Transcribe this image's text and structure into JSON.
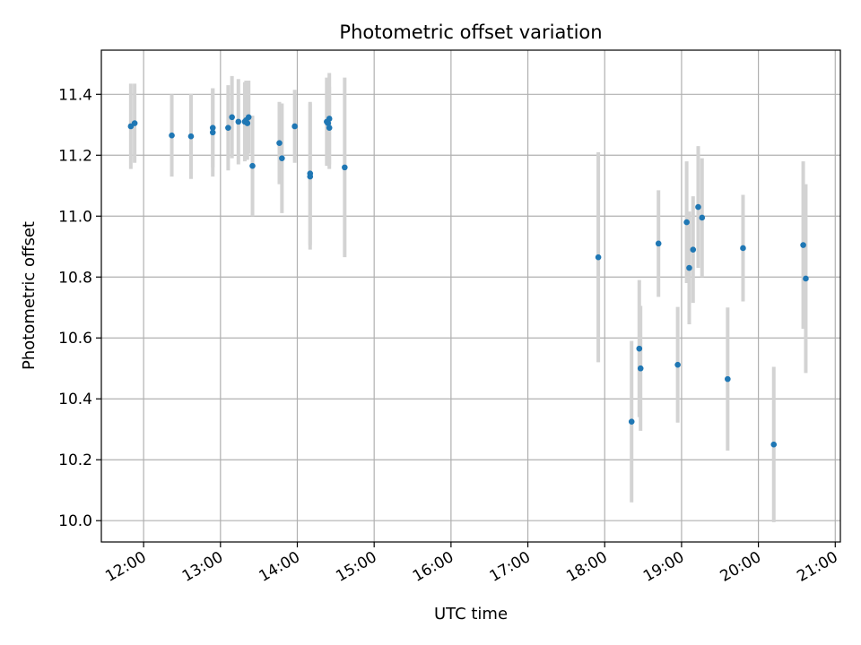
{
  "chart_data": {
    "type": "scatter",
    "title": "Photometric offset variation",
    "xlabel": "UTC time",
    "ylabel": "Photometric offset",
    "x_unit": "UTC hours",
    "xlim": [
      "11:27",
      "21:04"
    ],
    "ylim": [
      9.93,
      11.545
    ],
    "grid": true,
    "x_ticks": [
      "12:00",
      "13:00",
      "14:00",
      "15:00",
      "16:00",
      "17:00",
      "18:00",
      "19:00",
      "20:00",
      "21:00"
    ],
    "y_ticks": [
      "10.0",
      "10.2",
      "10.4",
      "10.6",
      "10.8",
      "11.0",
      "11.2",
      "11.4"
    ],
    "colors": {
      "points": "#1f77b4",
      "error_bars": "#d3d3d3",
      "grid": "#b0b0b0"
    },
    "points": [
      {
        "x": "11:50",
        "y": 11.295,
        "err": 0.14
      },
      {
        "x": "11:53",
        "y": 11.305,
        "err": 0.13
      },
      {
        "x": "12:22",
        "y": 11.265,
        "err": 0.135
      },
      {
        "x": "12:37",
        "y": 11.262,
        "err": 0.14
      },
      {
        "x": "12:54",
        "y": 11.275,
        "err": 0.145
      },
      {
        "x": "12:54",
        "y": 11.29,
        "err": 0.13
      },
      {
        "x": "13:06",
        "y": 11.29,
        "err": 0.14
      },
      {
        "x": "13:09",
        "y": 11.325,
        "err": 0.135
      },
      {
        "x": "13:14",
        "y": 11.31,
        "err": 0.14
      },
      {
        "x": "13:19",
        "y": 11.31,
        "err": 0.13
      },
      {
        "x": "13:20",
        "y": 11.315,
        "err": 0.13
      },
      {
        "x": "13:21",
        "y": 11.305,
        "err": 0.12
      },
      {
        "x": "13:22",
        "y": 11.325,
        "err": 0.12
      },
      {
        "x": "13:25",
        "y": 11.165,
        "err": 0.165
      },
      {
        "x": "13:46",
        "y": 11.24,
        "err": 0.135
      },
      {
        "x": "13:48",
        "y": 11.19,
        "err": 0.18
      },
      {
        "x": "13:58",
        "y": 11.295,
        "err": 0.12
      },
      {
        "x": "14:10",
        "y": 11.14,
        "err": 0.235
      },
      {
        "x": "14:10",
        "y": 11.13,
        "err": 0.24
      },
      {
        "x": "14:23",
        "y": 11.31,
        "err": 0.145
      },
      {
        "x": "14:24",
        "y": 11.305,
        "err": 0.14
      },
      {
        "x": "14:25",
        "y": 11.29,
        "err": 0.135
      },
      {
        "x": "14:25",
        "y": 11.32,
        "err": 0.15
      },
      {
        "x": "14:37",
        "y": 11.16,
        "err": 0.295
      },
      {
        "x": "17:55",
        "y": 10.865,
        "err": 0.345
      },
      {
        "x": "18:21",
        "y": 10.325,
        "err": 0.265
      },
      {
        "x": "18:27",
        "y": 10.565,
        "err": 0.225
      },
      {
        "x": "18:28",
        "y": 10.5,
        "err": 0.205
      },
      {
        "x": "18:42",
        "y": 10.91,
        "err": 0.175
      },
      {
        "x": "18:57",
        "y": 10.512,
        "err": 0.19
      },
      {
        "x": "19:04",
        "y": 10.98,
        "err": 0.2
      },
      {
        "x": "19:06",
        "y": 10.83,
        "err": 0.185
      },
      {
        "x": "19:09",
        "y": 10.89,
        "err": 0.175
      },
      {
        "x": "19:13",
        "y": 11.03,
        "err": 0.2
      },
      {
        "x": "19:16",
        "y": 10.995,
        "err": 0.195
      },
      {
        "x": "19:36",
        "y": 10.465,
        "err": 0.235
      },
      {
        "x": "19:48",
        "y": 10.895,
        "err": 0.175
      },
      {
        "x": "20:12",
        "y": 10.25,
        "err": 0.255
      },
      {
        "x": "20:35",
        "y": 10.905,
        "err": 0.275
      },
      {
        "x": "20:37",
        "y": 10.795,
        "err": 0.31
      }
    ]
  }
}
